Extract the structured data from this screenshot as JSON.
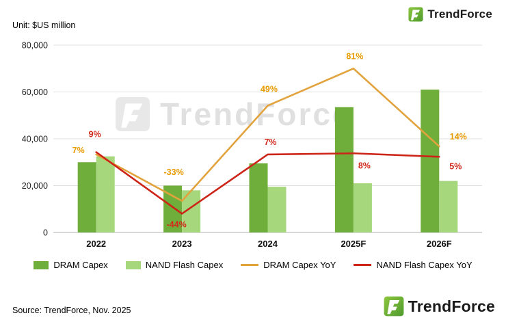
{
  "page": {
    "unit_label": "Unit: $US million",
    "source": "Source: TrendForce, Nov. 2025",
    "watermark": "TrendForce",
    "logo_text": "TrendForce"
  },
  "chart_data": {
    "type": "combo_bar_line",
    "title": "",
    "categories": [
      "2022",
      "2023",
      "2024",
      "2025F",
      "2026F"
    ],
    "bar_series": [
      {
        "name": "DRAM Capex",
        "color": "#6fae3a",
        "values": [
          30000,
          20000,
          29500,
          53500,
          61000
        ]
      },
      {
        "name": "NAND Flash Capex",
        "color": "#a6d77d",
        "values": [
          32500,
          18000,
          19500,
          21000,
          22000
        ]
      }
    ],
    "line_series": [
      {
        "name": "DRAM Capex YoY",
        "color": "#e2a33d",
        "label_color": "#e89b00",
        "values_pct": [
          7,
          -33,
          49,
          81,
          14
        ],
        "labels": [
          "7%",
          "-33%",
          "49%",
          "81%",
          "14%"
        ]
      },
      {
        "name": "NAND Flash Capex YoY",
        "color": "#cd2418",
        "label_color": "#d3281c",
        "values_pct": [
          9,
          -44,
          7,
          8,
          5
        ],
        "labels": [
          "9%",
          "-44%",
          "7%",
          "8%",
          "5%"
        ]
      }
    ],
    "y_axis": {
      "max": 80000,
      "ticks": [
        0,
        20000,
        40000,
        60000,
        80000
      ],
      "tick_labels": [
        "0",
        "20,000",
        "40,000",
        "60,000",
        "80,000"
      ]
    },
    "yoy_axis_mapping": {
      "slope": 496,
      "intercept": 29824
    },
    "grid": true,
    "legend_position": "bottom"
  }
}
